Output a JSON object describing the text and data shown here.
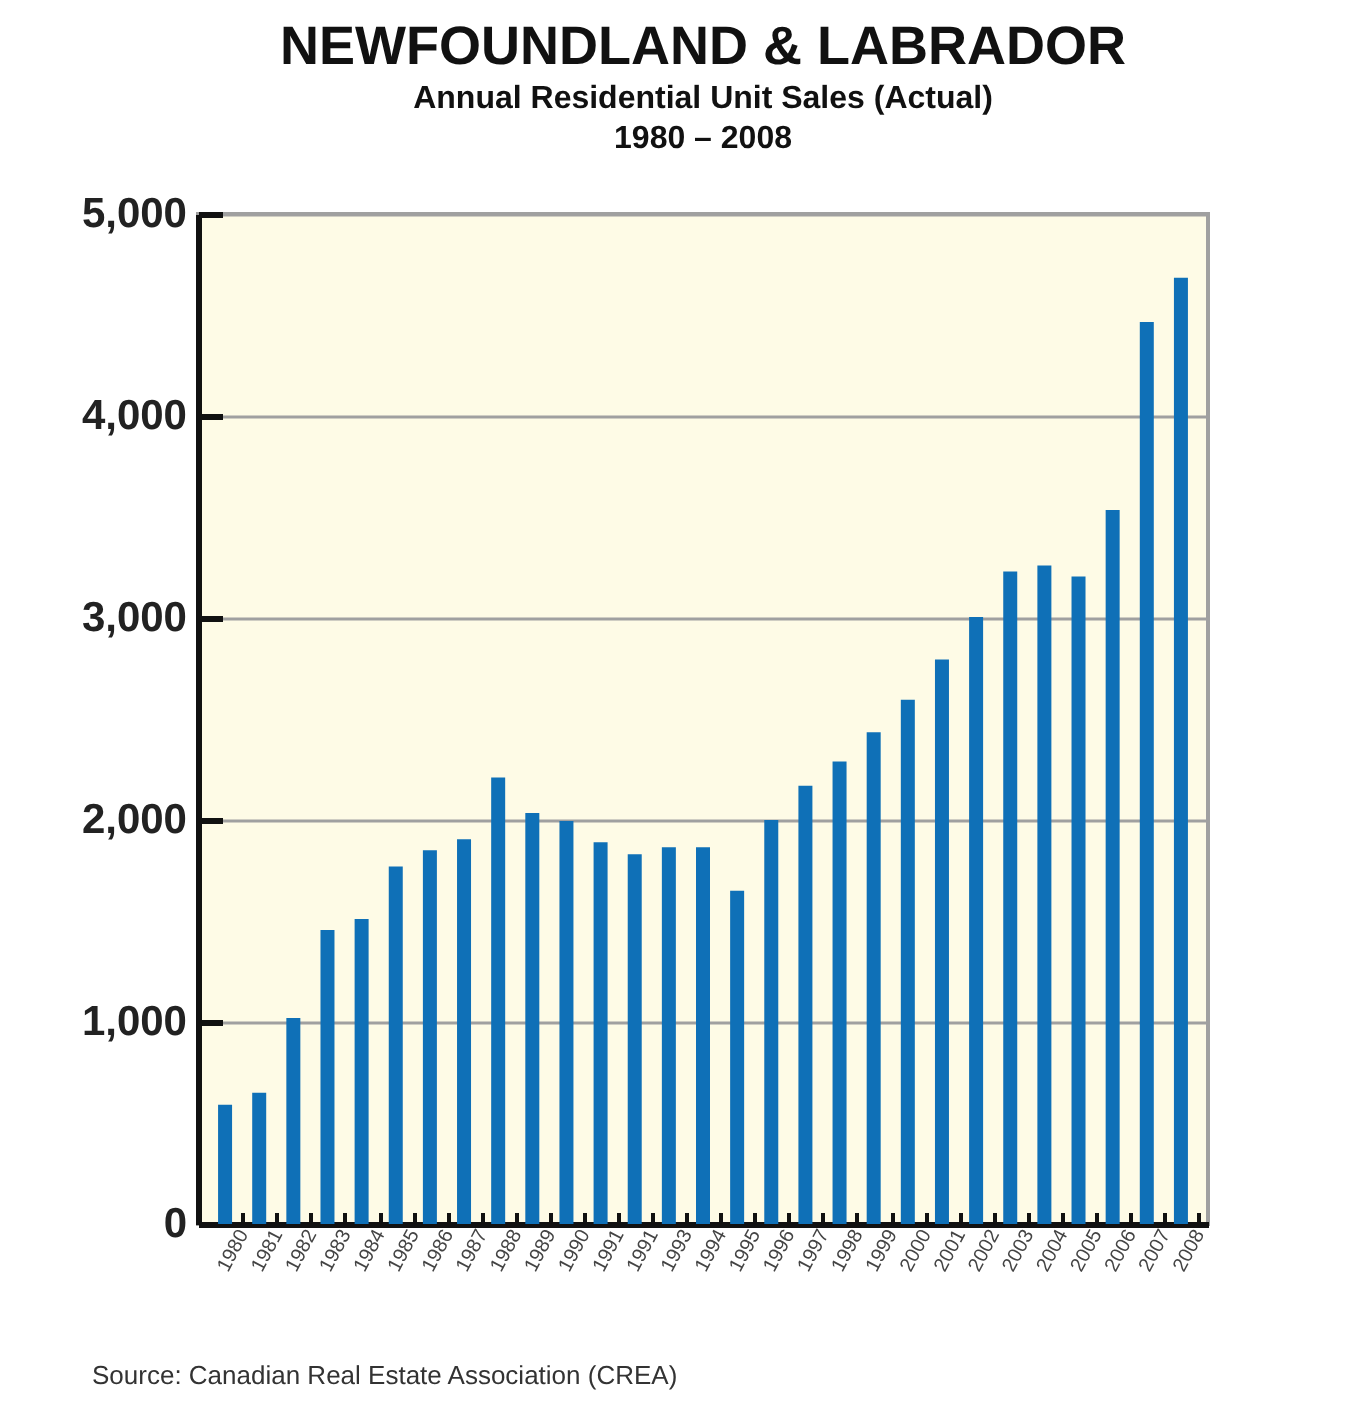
{
  "chart_data": {
    "type": "bar",
    "title": "NEWFOUNDLAND & LABRADOR",
    "subtitle": "Annual Residential Unit Sales (Actual)\n1980 – 2008",
    "categories": [
      "1980",
      "1981",
      "1982",
      "1983",
      "1984",
      "1985",
      "1986",
      "1987",
      "1988",
      "1989",
      "1990",
      "1991",
      "1991",
      "1993",
      "1994",
      "1995",
      "1996",
      "1997",
      "1998",
      "1999",
      "2000",
      "2001",
      "2002",
      "2003",
      "2004",
      "2005",
      "2006",
      "2007",
      "2008"
    ],
    "values": [
      590,
      650,
      1020,
      1455,
      1510,
      1770,
      1850,
      1905,
      2210,
      2035,
      1995,
      1890,
      1830,
      1865,
      1865,
      1650,
      2000,
      2170,
      2290,
      2435,
      2595,
      2795,
      3005,
      3230,
      3260,
      3205,
      3535,
      4465,
      4685
    ],
    "color": "#0f70b7",
    "ylim": [
      0,
      5000
    ],
    "yticks": [
      {
        "value": 0,
        "label": "0"
      },
      {
        "value": 1000,
        "label": "1,000"
      },
      {
        "value": 2000,
        "label": "2,000"
      },
      {
        "value": 3000,
        "label": "3,000"
      },
      {
        "value": 4000,
        "label": "4,000"
      },
      {
        "value": 5000,
        "label": "5,000"
      }
    ],
    "grid": true,
    "annotations": [
      "Source: Canadian Real Estate Association (CREA)"
    ]
  }
}
